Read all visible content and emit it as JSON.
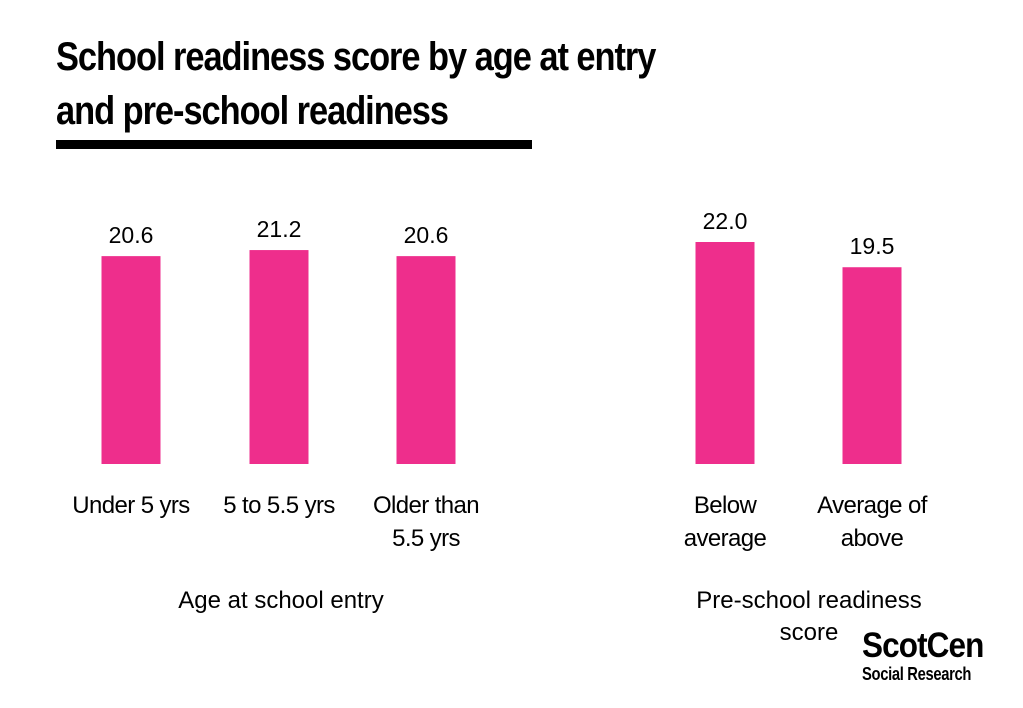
{
  "chart_data": {
    "type": "bar",
    "title_lines": [
      "School readiness score by age at entry",
      "and pre-school readiness"
    ],
    "color": "#EE2E8C",
    "ylim": [
      0,
      22.0
    ],
    "grid": false,
    "legend": "none",
    "groups": [
      {
        "label": "Age at school entry",
        "categories": [
          [
            "Under 5 yrs"
          ],
          [
            "5 to 5.5 yrs"
          ],
          [
            "Older than",
            "5.5 yrs"
          ]
        ],
        "values": [
          20.6,
          21.2,
          20.6
        ],
        "value_labels": [
          "20.6",
          "21.2",
          "20.6"
        ]
      },
      {
        "label": "Pre-school readiness score",
        "label_lines": [
          "Pre-school readiness",
          "score"
        ],
        "categories": [
          [
            "Below",
            "average"
          ],
          [
            "Average of",
            "above"
          ]
        ],
        "values": [
          22.0,
          19.5
        ],
        "value_labels": [
          "22.0",
          "19.5"
        ]
      }
    ]
  },
  "logo": {
    "name": "ScotCen",
    "subtitle": "Social Research"
  }
}
